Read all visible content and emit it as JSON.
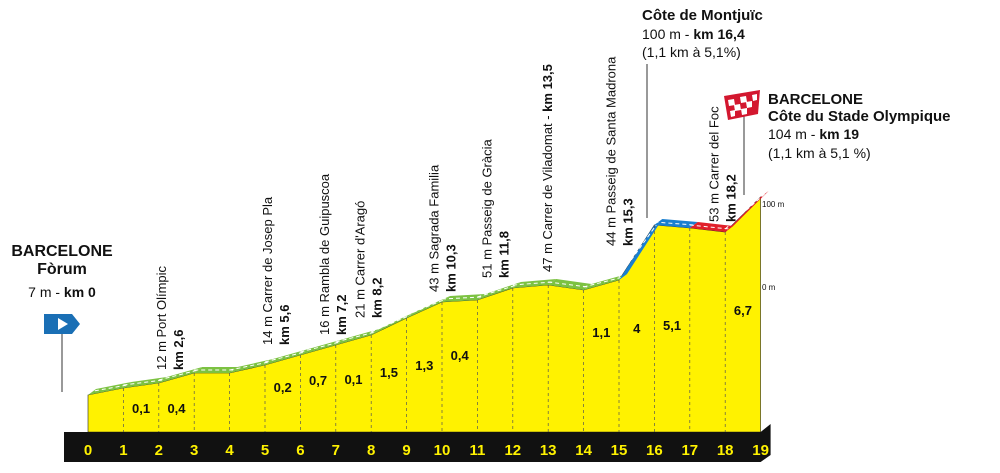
{
  "start": {
    "name": "BARCELONE",
    "place": "Fòrum",
    "alt": "7 m - ",
    "km": "km 0"
  },
  "waypoints": [
    {
      "label": "12 m Port Olímpic",
      "km": "km 2,6"
    },
    {
      "label": "14 m Carrer de Josep Pla",
      "km": "km 5,6"
    },
    {
      "label": "16 m Rambla de Guipuscoa",
      "km": "km 7,2"
    },
    {
      "label": "21 m Carrer d'Aragó",
      "km": "km 8,2"
    },
    {
      "label": "43 m Sagrada Familia",
      "km": "km 10,3"
    },
    {
      "label": "51 m Passeig de Gràcia",
      "km": "km 11,8"
    },
    {
      "label": "47 m Carrer de Viladomat - ",
      "km": "km 13,5"
    },
    {
      "label": "44 m Passeig de Santa Madrona",
      "km": "km 15,3"
    },
    {
      "label": "53 m Carrer del Foc",
      "km": "km 18,2"
    }
  ],
  "climb": {
    "name": "Côte de Montjuïc",
    "alt": "100 m - ",
    "km": "km 16,4",
    "detail": "(1,1 km à 5,1%)"
  },
  "finish": {
    "name": "BARCELONE",
    "climb": "Côte du Stade Olympique",
    "alt": "104 m - ",
    "km": "km 19",
    "detail": "(1,1 km à 5,1 %)"
  },
  "scale": [
    "100 m",
    "0 m"
  ],
  "gradients": [
    "0,1",
    "0,4",
    "0,2",
    "0,7",
    "0,1",
    "1,5",
    "1,3",
    "0,4",
    "1,1",
    "4",
    "5,1",
    "6,7"
  ],
  "km_axis": [
    "0",
    "1",
    "2",
    "3",
    "4",
    "5",
    "6",
    "7",
    "8",
    "9",
    "10",
    "11",
    "12",
    "13",
    "14",
    "15",
    "16",
    "17",
    "18",
    "19"
  ]
}
